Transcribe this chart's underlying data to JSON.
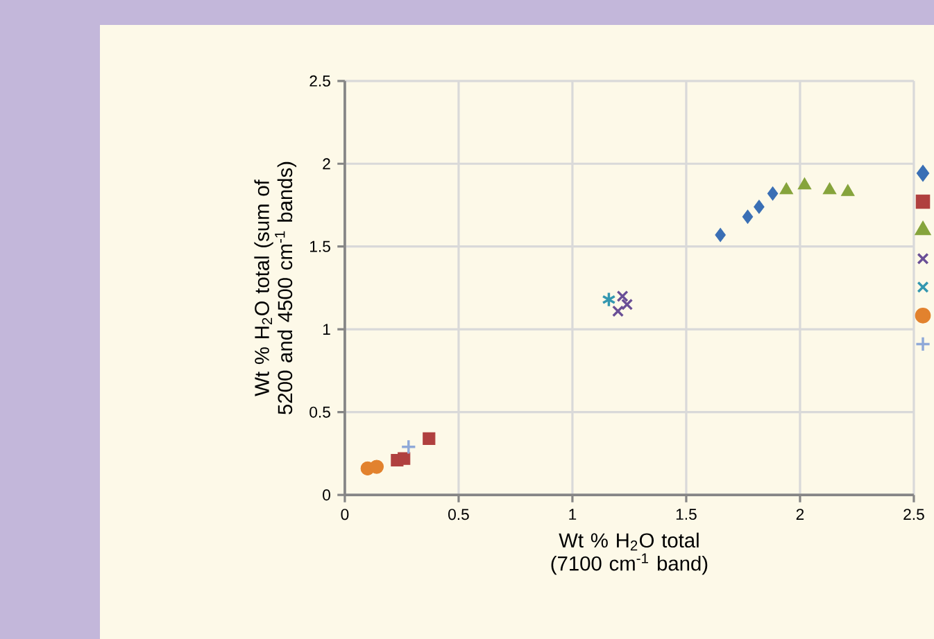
{
  "chart_data": {
    "type": "scatter",
    "xlabel": "Wt % H$_{2}$O total (7100 cm$^{-1}$ band)",
    "ylabel": "Wt % H$_{2}$O total (sum of 5200 and 4500 cm$^{-1}$ bands)",
    "xlim": [
      0,
      2.5
    ],
    "ylim": [
      0,
      2.5
    ],
    "xticks": [
      0,
      0.5,
      1,
      1.5,
      2,
      2.5
    ],
    "yticks": [
      0,
      0.5,
      1,
      1.5,
      2,
      2.5
    ],
    "grid": true,
    "series": [
      {
        "color": "#3a6fb5",
        "marker": "diamond",
        "x": [
          1.65,
          1.77,
          1.82,
          1.88
        ],
        "values": [
          1.57,
          1.68,
          1.74,
          1.82
        ]
      },
      {
        "color": "#b0403f",
        "marker": "square",
        "x": [
          0.23,
          0.26,
          0.37
        ],
        "values": [
          0.21,
          0.22,
          0.34
        ]
      },
      {
        "color": "#86a43c",
        "marker": "triangle",
        "x": [
          1.94,
          2.02,
          2.13,
          2.21
        ],
        "values": [
          1.84,
          1.87,
          1.84,
          1.83
        ]
      },
      {
        "color": "#6a4f96",
        "marker": "cross",
        "x": [
          1.22,
          1.2,
          1.24
        ],
        "values": [
          1.2,
          1.11,
          1.15
        ]
      },
      {
        "color": "#3397b0",
        "marker": "cross",
        "x": [
          1.16
        ],
        "values": [
          1.18
        ]
      },
      {
        "color": "#e2822e",
        "marker": "circle",
        "x": [
          0.1,
          0.14
        ],
        "values": [
          0.16,
          0.17
        ]
      },
      {
        "color": "#8fa9d8",
        "marker": "plus",
        "x": [
          0.28
        ],
        "values": [
          0.29
        ]
      }
    ]
  }
}
